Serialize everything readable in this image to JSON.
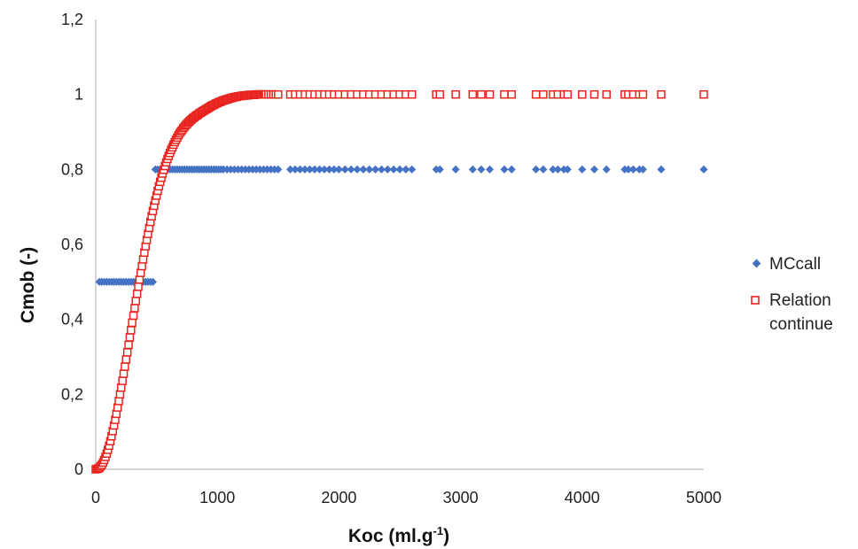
{
  "chart_data": {
    "type": "scatter",
    "xlabel": "Koc (ml.g",
    "xlabel_sup": "-1",
    "xlabel_end": ")",
    "ylabel": "Cmob (-)",
    "xlim": [
      0,
      5000
    ],
    "ylim": [
      0,
      1.2
    ],
    "x_ticks": [
      0,
      1000,
      2000,
      3000,
      4000,
      5000
    ],
    "x_tick_labels": [
      "0",
      "1000",
      "2000",
      "3000",
      "4000",
      "5000"
    ],
    "y_ticks": [
      0,
      0.2,
      0.4,
      0.6,
      0.8,
      1.0,
      1.2
    ],
    "y_tick_labels": [
      "0",
      "0,2",
      "0,4",
      "0,6",
      "0,8",
      "1",
      "1,2"
    ],
    "grid": false,
    "legend_position": "right",
    "series": [
      {
        "name": "MCcall",
        "marker": "diamond",
        "color": "#4472C4",
        "x": [
          30,
          50,
          70,
          90,
          110,
          130,
          150,
          170,
          190,
          210,
          230,
          250,
          270,
          290,
          310,
          330,
          350,
          370,
          390,
          410,
          430,
          450,
          470,
          490,
          510,
          530,
          550,
          570,
          590,
          610,
          630,
          650,
          670,
          690,
          710,
          730,
          750,
          770,
          790,
          810,
          830,
          850,
          870,
          890,
          910,
          930,
          950,
          970,
          990,
          1010,
          1030,
          1050,
          1080,
          1110,
          1140,
          1170,
          1200,
          1230,
          1260,
          1290,
          1320,
          1350,
          1380,
          1410,
          1440,
          1470,
          1500,
          1600,
          1640,
          1680,
          1720,
          1760,
          1800,
          1840,
          1880,
          1920,
          1960,
          2000,
          2050,
          2100,
          2150,
          2200,
          2250,
          2300,
          2350,
          2400,
          2450,
          2500,
          2550,
          2600,
          2800,
          2830,
          2960,
          3100,
          3170,
          3240,
          3360,
          3420,
          3620,
          3680,
          3760,
          3800,
          3850,
          3880,
          4000,
          4100,
          4200,
          4350,
          4380,
          4420,
          4470,
          4500,
          4650,
          5000
        ],
        "y": [
          0.5,
          0.5,
          0.5,
          0.5,
          0.5,
          0.5,
          0.5,
          0.5,
          0.5,
          0.5,
          0.5,
          0.5,
          0.5,
          0.5,
          0.5,
          0.5,
          0.5,
          0.5,
          0.5,
          0.5,
          0.5,
          0.5,
          0.5,
          0.8,
          0.8,
          0.8,
          0.8,
          0.8,
          0.8,
          0.8,
          0.8,
          0.8,
          0.8,
          0.8,
          0.8,
          0.8,
          0.8,
          0.8,
          0.8,
          0.8,
          0.8,
          0.8,
          0.8,
          0.8,
          0.8,
          0.8,
          0.8,
          0.8,
          0.8,
          0.8,
          0.8,
          0.8,
          0.8,
          0.8,
          0.8,
          0.8,
          0.8,
          0.8,
          0.8,
          0.8,
          0.8,
          0.8,
          0.8,
          0.8,
          0.8,
          0.8,
          0.8,
          0.8,
          0.8,
          0.8,
          0.8,
          0.8,
          0.8,
          0.8,
          0.8,
          0.8,
          0.8,
          0.8,
          0.8,
          0.8,
          0.8,
          0.8,
          0.8,
          0.8,
          0.8,
          0.8,
          0.8,
          0.8,
          0.8,
          0.8,
          0.8,
          0.8,
          0.8,
          0.8,
          0.8,
          0.8,
          0.8,
          0.8,
          0.8,
          0.8,
          0.8,
          0.8,
          0.8,
          0.8,
          0.8,
          0.8,
          0.8,
          0.8,
          0.8,
          0.8,
          0.8,
          0.8,
          0.8,
          0.8
        ]
      },
      {
        "name": "Relation continue",
        "marker": "square-open",
        "color": "#E8231E",
        "x": [
          0,
          10,
          20,
          30,
          40,
          50,
          60,
          70,
          80,
          90,
          100,
          110,
          120,
          130,
          140,
          150,
          160,
          170,
          180,
          190,
          200,
          210,
          220,
          230,
          240,
          250,
          260,
          270,
          280,
          290,
          300,
          310,
          320,
          330,
          340,
          350,
          360,
          370,
          380,
          390,
          400,
          410,
          420,
          430,
          440,
          450,
          460,
          470,
          480,
          490,
          500,
          510,
          520,
          530,
          540,
          550,
          560,
          570,
          580,
          590,
          600,
          610,
          620,
          630,
          640,
          650,
          660,
          670,
          680,
          690,
          700,
          710,
          720,
          730,
          740,
          750,
          760,
          770,
          780,
          790,
          800,
          810,
          820,
          830,
          840,
          850,
          860,
          870,
          880,
          890,
          900,
          910,
          920,
          930,
          940,
          950,
          960,
          970,
          980,
          990,
          1000,
          1010,
          1020,
          1030,
          1040,
          1050,
          1060,
          1070,
          1080,
          1090,
          1100,
          1110,
          1120,
          1130,
          1140,
          1150,
          1160,
          1170,
          1180,
          1190,
          1200,
          1210,
          1220,
          1230,
          1240,
          1250,
          1260,
          1270,
          1280,
          1290,
          1300,
          1310,
          1320,
          1330,
          1340,
          1350,
          1360,
          1370,
          1380,
          1390,
          1400,
          1420,
          1440,
          1460,
          1480,
          1500,
          1600,
          1640,
          1680,
          1720,
          1760,
          1800,
          1840,
          1880,
          1920,
          1960,
          2000,
          2050,
          2100,
          2150,
          2200,
          2250,
          2300,
          2350,
          2400,
          2450,
          2500,
          2550,
          2600,
          2800,
          2830,
          2960,
          3100,
          3170,
          3240,
          3360,
          3420,
          3620,
          3680,
          3760,
          3800,
          3850,
          3880,
          4000,
          4100,
          4200,
          4350,
          4380,
          4420,
          4470,
          4500,
          4650,
          5000
        ],
        "y": [
          0,
          0.001,
          0.002,
          0.004,
          0.008,
          0.012,
          0.018,
          0.025,
          0.033,
          0.042,
          0.052,
          0.063,
          0.075,
          0.088,
          0.102,
          0.117,
          0.132,
          0.148,
          0.165,
          0.182,
          0.2,
          0.218,
          0.236,
          0.255,
          0.274,
          0.293,
          0.312,
          0.332,
          0.352,
          0.371,
          0.391,
          0.41,
          0.43,
          0.449,
          0.468,
          0.487,
          0.506,
          0.524,
          0.542,
          0.56,
          0.578,
          0.595,
          0.612,
          0.628,
          0.644,
          0.66,
          0.675,
          0.689,
          0.703,
          0.717,
          0.73,
          0.743,
          0.755,
          0.767,
          0.778,
          0.789,
          0.799,
          0.809,
          0.819,
          0.828,
          0.836,
          0.844,
          0.852,
          0.859,
          0.866,
          0.873,
          0.879,
          0.885,
          0.891,
          0.896,
          0.901,
          0.905,
          0.91,
          0.914,
          0.918,
          0.921,
          0.925,
          0.928,
          0.931,
          0.934,
          0.937,
          0.939,
          0.942,
          0.944,
          0.946,
          0.949,
          0.951,
          0.953,
          0.955,
          0.957,
          0.959,
          0.961,
          0.963,
          0.965,
          0.967,
          0.969,
          0.971,
          0.972,
          0.974,
          0.976,
          0.977,
          0.979,
          0.98,
          0.981,
          0.983,
          0.984,
          0.985,
          0.986,
          0.987,
          0.988,
          0.989,
          0.99,
          0.991,
          0.992,
          0.993,
          0.993,
          0.994,
          0.995,
          0.995,
          0.996,
          0.996,
          0.997,
          0.997,
          0.997,
          0.998,
          0.998,
          0.998,
          0.999,
          0.999,
          0.999,
          0.999,
          0.999,
          1,
          1,
          1,
          1,
          1,
          1,
          1,
          1,
          1,
          1,
          1,
          1,
          1,
          1,
          1,
          1,
          1,
          1,
          1,
          1,
          1,
          1,
          1,
          1,
          1,
          1,
          1,
          1,
          1,
          1,
          1,
          1,
          1,
          1,
          1,
          1,
          1,
          1,
          1,
          1,
          1,
          1,
          1,
          1,
          1,
          1,
          1,
          1,
          1,
          1,
          1,
          1,
          1,
          1,
          1,
          1,
          1,
          1,
          1,
          1,
          1
        ]
      }
    ],
    "legend": [
      {
        "label": "MCcall"
      },
      {
        "label": "Relation",
        "label_line2": "continue"
      }
    ]
  }
}
